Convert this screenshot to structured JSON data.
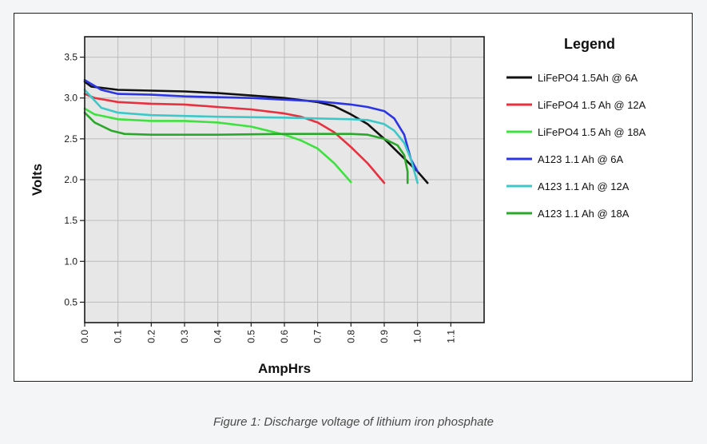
{
  "caption": "Figure 1: Discharge voltage of lithium iron phosphate",
  "chart_data": {
    "type": "line",
    "title": "",
    "xlabel": "AmpHrs",
    "ylabel": "Volts",
    "xlim": [
      0.0,
      1.2
    ],
    "ylim": [
      0.25,
      3.75
    ],
    "x_ticks": [
      "0.0",
      "0.1",
      "0.2",
      "0.3",
      "0.4",
      "0.5",
      "0.6",
      "0.7",
      "0.8",
      "0.9",
      "1.0",
      "1.1"
    ],
    "y_ticks": [
      "0.5",
      "1.0",
      "1.5",
      "2.0",
      "2.5",
      "3.0",
      "3.5"
    ],
    "grid": true,
    "legend_title": "Legend",
    "legend_position": "right",
    "series": [
      {
        "name": "LiFePO4 1.5Ah @ 6A",
        "color": "#111111",
        "points": [
          [
            0.0,
            3.2
          ],
          [
            0.02,
            3.14
          ],
          [
            0.1,
            3.1
          ],
          [
            0.2,
            3.09
          ],
          [
            0.3,
            3.08
          ],
          [
            0.4,
            3.06
          ],
          [
            0.5,
            3.03
          ],
          [
            0.6,
            3.0
          ],
          [
            0.7,
            2.95
          ],
          [
            0.75,
            2.9
          ],
          [
            0.8,
            2.8
          ],
          [
            0.85,
            2.68
          ],
          [
            0.9,
            2.5
          ],
          [
            0.95,
            2.3
          ],
          [
            1.0,
            2.1
          ],
          [
            1.03,
            1.96
          ]
        ]
      },
      {
        "name": "LiFePO4 1.5 Ah @ 12A",
        "color": "#e8303f",
        "points": [
          [
            0.0,
            3.05
          ],
          [
            0.03,
            3.0
          ],
          [
            0.1,
            2.95
          ],
          [
            0.2,
            2.93
          ],
          [
            0.3,
            2.92
          ],
          [
            0.4,
            2.89
          ],
          [
            0.5,
            2.86
          ],
          [
            0.6,
            2.81
          ],
          [
            0.65,
            2.77
          ],
          [
            0.7,
            2.7
          ],
          [
            0.75,
            2.58
          ],
          [
            0.8,
            2.4
          ],
          [
            0.85,
            2.2
          ],
          [
            0.9,
            1.96
          ]
        ]
      },
      {
        "name": "LiFePO4 1.5 Ah @ 18A",
        "color": "#3ee23e",
        "points": [
          [
            0.0,
            2.87
          ],
          [
            0.03,
            2.8
          ],
          [
            0.1,
            2.74
          ],
          [
            0.2,
            2.72
          ],
          [
            0.3,
            2.72
          ],
          [
            0.4,
            2.7
          ],
          [
            0.5,
            2.65
          ],
          [
            0.6,
            2.55
          ],
          [
            0.65,
            2.48
          ],
          [
            0.7,
            2.38
          ],
          [
            0.75,
            2.2
          ],
          [
            0.8,
            1.97
          ]
        ]
      },
      {
        "name": "A123 1.1 Ah @ 6A",
        "color": "#2b35e6",
        "points": [
          [
            0.0,
            3.22
          ],
          [
            0.05,
            3.1
          ],
          [
            0.1,
            3.05
          ],
          [
            0.2,
            3.04
          ],
          [
            0.3,
            3.02
          ],
          [
            0.4,
            3.01
          ],
          [
            0.5,
            3.0
          ],
          [
            0.6,
            2.98
          ],
          [
            0.7,
            2.96
          ],
          [
            0.8,
            2.92
          ],
          [
            0.85,
            2.89
          ],
          [
            0.9,
            2.84
          ],
          [
            0.93,
            2.75
          ],
          [
            0.96,
            2.55
          ],
          [
            0.98,
            2.25
          ],
          [
            1.0,
            2.1
          ]
        ]
      },
      {
        "name": "A123 1.1 Ah @ 12A",
        "color": "#3cc8c8",
        "points": [
          [
            0.0,
            3.1
          ],
          [
            0.05,
            2.88
          ],
          [
            0.1,
            2.82
          ],
          [
            0.2,
            2.79
          ],
          [
            0.4,
            2.77
          ],
          [
            0.6,
            2.76
          ],
          [
            0.8,
            2.74
          ],
          [
            0.85,
            2.73
          ],
          [
            0.9,
            2.68
          ],
          [
            0.93,
            2.6
          ],
          [
            0.96,
            2.45
          ],
          [
            0.98,
            2.25
          ],
          [
            1.0,
            1.96
          ]
        ]
      },
      {
        "name": "A123 1.1 Ah @ 18A",
        "color": "#2aa82a",
        "points": [
          [
            0.0,
            2.82
          ],
          [
            0.03,
            2.7
          ],
          [
            0.08,
            2.6
          ],
          [
            0.12,
            2.56
          ],
          [
            0.2,
            2.55
          ],
          [
            0.4,
            2.55
          ],
          [
            0.6,
            2.56
          ],
          [
            0.8,
            2.56
          ],
          [
            0.85,
            2.55
          ],
          [
            0.9,
            2.5
          ],
          [
            0.94,
            2.42
          ],
          [
            0.96,
            2.3
          ],
          [
            0.97,
            2.1
          ],
          [
            0.97,
            1.96
          ]
        ]
      }
    ]
  }
}
